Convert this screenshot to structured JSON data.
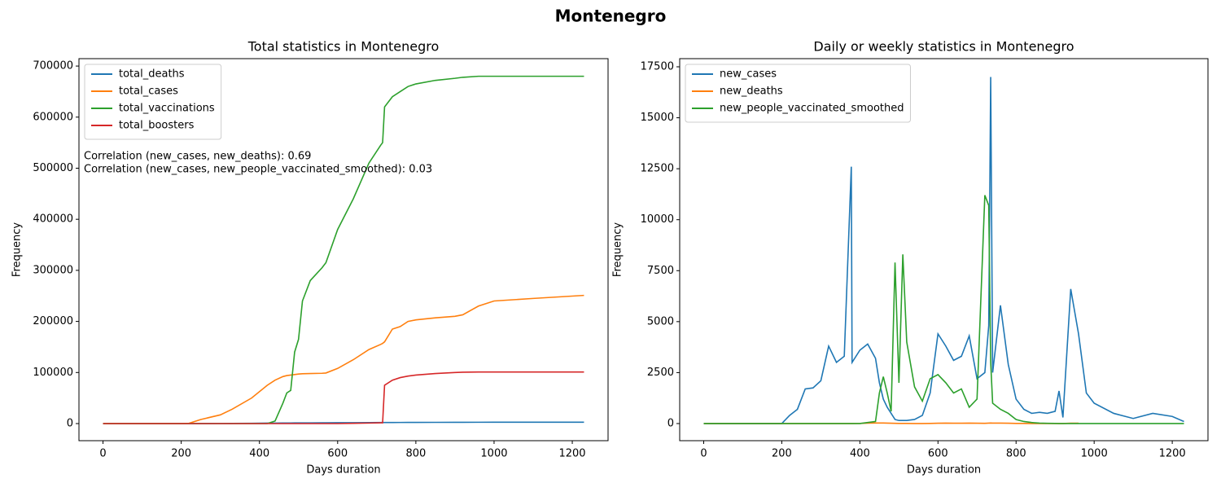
{
  "title": "Montenegro",
  "chart_data": [
    {
      "type": "line",
      "title": "Total statistics in Montenegro",
      "xlabel": "Days duration",
      "ylabel": "Frequency",
      "xlim": [
        -61.5,
        1291.5
      ],
      "ylim": [
        -33500,
        714500
      ],
      "xticks": [
        0,
        200,
        400,
        600,
        800,
        1000,
        1200
      ],
      "yticks": [
        0,
        100000,
        200000,
        300000,
        400000,
        500000,
        600000,
        700000
      ],
      "legend": "upper left",
      "grid": false,
      "annotations": [
        "Correlation (new_cases, new_deaths): 0.69",
        "Correlation (new_cases, new_people_vaccinated_smoothed): 0.03"
      ],
      "x": [
        0,
        200,
        220,
        250,
        300,
        330,
        380,
        420,
        440,
        460,
        470,
        480,
        490,
        500,
        510,
        530,
        560,
        570,
        600,
        640,
        680,
        710,
        715,
        720,
        740,
        760,
        780,
        800,
        850,
        900,
        920,
        960,
        1000,
        1100,
        1230
      ],
      "series": [
        {
          "name": "total_deaths",
          "color": "#1f77b4",
          "values": [
            0,
            0,
            10,
            50,
            200,
            350,
            600,
            900,
            1000,
            1100,
            1150,
            1200,
            1250,
            1300,
            1350,
            1400,
            1500,
            1550,
            1650,
            1800,
            1950,
            2050,
            2060,
            2080,
            2150,
            2200,
            2250,
            2300,
            2400,
            2500,
            2550,
            2600,
            2650,
            2700,
            2750
          ]
        },
        {
          "name": "total_cases",
          "color": "#ff7f0e",
          "values": [
            0,
            0,
            500,
            8000,
            17000,
            28000,
            50000,
            75000,
            85000,
            92000,
            94000,
            95000,
            96000,
            97000,
            97500,
            98000,
            98500,
            99000,
            108000,
            125000,
            145000,
            155000,
            157000,
            160000,
            185000,
            190000,
            200000,
            203000,
            207000,
            210000,
            213000,
            230000,
            240000,
            245000,
            251000
          ]
        },
        {
          "name": "total_vaccinations",
          "color": "#2ca02c",
          "values": [
            0,
            0,
            0,
            0,
            0,
            0,
            0,
            0,
            5000,
            40000,
            60000,
            65000,
            140000,
            165000,
            240000,
            280000,
            305000,
            315000,
            380000,
            440000,
            510000,
            545000,
            550000,
            620000,
            640000,
            650000,
            660000,
            665000,
            672000,
            676000,
            678000,
            680000,
            680000,
            680000,
            680000
          ]
        },
        {
          "name": "total_boosters",
          "color": "#d62728",
          "values": [
            0,
            0,
            0,
            0,
            0,
            0,
            0,
            0,
            0,
            0,
            0,
            0,
            0,
            0,
            0,
            0,
            0,
            0,
            0,
            500,
            1000,
            1500,
            1500,
            75000,
            85000,
            90000,
            93000,
            95000,
            98000,
            100000,
            100500,
            101000,
            101000,
            101000,
            101000
          ]
        }
      ]
    },
    {
      "type": "line",
      "title": "Daily or weekly statistics in Montenegro",
      "xlabel": "Days duration",
      "ylabel": "Frequency",
      "xlim": [
        -61.5,
        1291.5
      ],
      "ylim": [
        -840,
        17900
      ],
      "xticks": [
        0,
        200,
        400,
        600,
        800,
        1000,
        1200
      ],
      "yticks": [
        0,
        2500,
        5000,
        7500,
        10000,
        12500,
        15000,
        17500
      ],
      "legend": "upper left",
      "grid": false,
      "x": [
        0,
        100,
        200,
        220,
        240,
        260,
        280,
        300,
        320,
        340,
        360,
        378,
        380,
        400,
        420,
        440,
        450,
        460,
        470,
        480,
        490,
        500,
        510,
        520,
        540,
        560,
        580,
        600,
        620,
        640,
        660,
        680,
        700,
        720,
        730,
        735,
        740,
        760,
        780,
        800,
        820,
        840,
        860,
        880,
        900,
        910,
        920,
        940,
        960,
        980,
        1000,
        1050,
        1100,
        1150,
        1200,
        1230
      ],
      "series": [
        {
          "name": "new_cases",
          "color": "#1f77b4",
          "values": [
            0,
            0,
            0,
            400,
            700,
            1700,
            1750,
            2100,
            3800,
            3000,
            3300,
            12600,
            3000,
            3600,
            3900,
            3200,
            2000,
            1200,
            800,
            500,
            200,
            150,
            150,
            150,
            200,
            400,
            1500,
            4400,
            3800,
            3100,
            3300,
            4300,
            2200,
            2500,
            4800,
            17000,
            2500,
            5800,
            2900,
            1200,
            700,
            500,
            550,
            500,
            600,
            1600,
            300,
            6600,
            4400,
            1500,
            1000,
            500,
            250,
            500,
            350,
            100
          ]
        },
        {
          "name": "new_deaths",
          "color": "#ff7f0e",
          "values": [
            0,
            0,
            0,
            0,
            0,
            0,
            0,
            0,
            0,
            0,
            0,
            0,
            0,
            5,
            20,
            25,
            25,
            25,
            20,
            15,
            10,
            8,
            5,
            5,
            3,
            3,
            5,
            15,
            20,
            15,
            15,
            20,
            15,
            10,
            20,
            25,
            20,
            20,
            15,
            8,
            5,
            3,
            3,
            3,
            3,
            3,
            3,
            15,
            15,
            null,
            null,
            null,
            null,
            null,
            null,
            null
          ]
        },
        {
          "name": "new_people_vaccinated_smoothed",
          "color": "#2ca02c",
          "values": [
            0,
            0,
            0,
            0,
            0,
            0,
            0,
            0,
            0,
            0,
            0,
            0,
            0,
            0,
            50,
            100,
            1500,
            2300,
            1500,
            600,
            7900,
            2000,
            8300,
            4000,
            1800,
            1100,
            2200,
            2400,
            2000,
            1500,
            1700,
            800,
            1200,
            11200,
            10700,
            3000,
            1000,
            700,
            500,
            200,
            100,
            50,
            20,
            10,
            5,
            0,
            0,
            0,
            0,
            0,
            0,
            0,
            0,
            0,
            0,
            0
          ]
        }
      ]
    }
  ]
}
